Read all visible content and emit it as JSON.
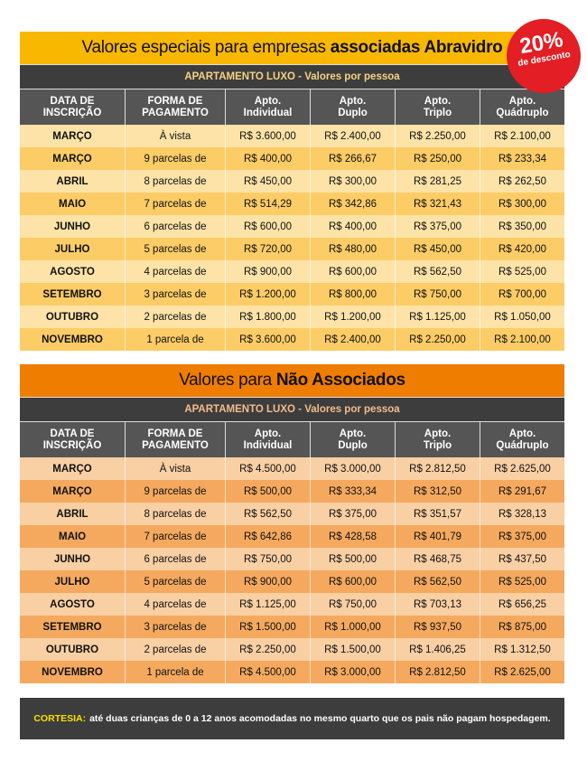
{
  "colors": {
    "yellow": "#F9B800",
    "orange": "#EF7D00",
    "row_light_1": "#FDE3A7",
    "row_dark_1": "#FCCC66",
    "row_light_2": "#F9CFA4",
    "row_dark_2": "#F5A95F",
    "header_gray": "#555555"
  },
  "badge": {
    "percent": "20%",
    "text": "de desconto"
  },
  "headers": [
    "DATA DE INSCRIÇÃO",
    "FORMA DE PAGAMENTO",
    "Apto. Individual",
    "Apto. Duplo",
    "Apto. Triplo",
    "Apto. Quádruplo"
  ],
  "sections": [
    {
      "title_normal": "Valores especiais para empresas",
      "title_bold": "associadas Abravidro",
      "subtitle": "APARTAMENTO LUXO - Valores por pessoa",
      "rows": [
        [
          "MARÇO",
          "À vista",
          "R$ 3.600,00",
          "R$ 2.400,00",
          "R$ 2.250,00",
          "R$ 2.100,00"
        ],
        [
          "MARÇO",
          "9 parcelas de",
          "R$ 400,00",
          "R$ 266,67",
          "R$ 250,00",
          "R$ 233,34"
        ],
        [
          "ABRIL",
          "8 parcelas de",
          "R$ 450,00",
          "R$ 300,00",
          "R$ 281,25",
          "R$ 262,50"
        ],
        [
          "MAIO",
          "7 parcelas de",
          "R$ 514,29",
          "R$ 342,86",
          "R$ 321,43",
          "R$ 300,00"
        ],
        [
          "JUNHO",
          "6 parcelas de",
          "R$ 600,00",
          "R$ 400,00",
          "R$ 375,00",
          "R$ 350,00"
        ],
        [
          "JULHO",
          "5 parcelas de",
          "R$ 720,00",
          "R$ 480,00",
          "R$ 450,00",
          "R$ 420,00"
        ],
        [
          "AGOSTO",
          "4 parcelas de",
          "R$ 900,00",
          "R$ 600,00",
          "R$ 562,50",
          "R$ 525,00"
        ],
        [
          "SETEMBRO",
          "3 parcelas de",
          "R$ 1.200,00",
          "R$ 800,00",
          "R$ 750,00",
          "R$ 700,00"
        ],
        [
          "OUTUBRO",
          "2 parcelas de",
          "R$ 1.800,00",
          "R$ 1.200,00",
          "R$ 1.125,00",
          "R$ 1.050,00"
        ],
        [
          "NOVEMBRO",
          "1 parcela de",
          "R$ 3.600,00",
          "R$ 2.400,00",
          "R$ 2.250,00",
          "R$ 2.100,00"
        ]
      ]
    },
    {
      "title_normal": "Valores para",
      "title_bold": "Não Associados",
      "subtitle": "APARTAMENTO LUXO - Valores por pessoa",
      "rows": [
        [
          "MARÇO",
          "À vista",
          "R$ 4.500,00",
          "R$ 3.000,00",
          "R$ 2.812,50",
          "R$ 2.625,00"
        ],
        [
          "MARÇO",
          "9 parcelas de",
          "R$ 500,00",
          "R$ 333,34",
          "R$ 312,50",
          "R$ 291,67"
        ],
        [
          "ABRIL",
          "8 parcelas de",
          "R$ 562,50",
          "R$ 375,00",
          "R$ 351,57",
          "R$ 328,13"
        ],
        [
          "MAIO",
          "7 parcelas de",
          "R$ 642,86",
          "R$ 428,58",
          "R$ 401,79",
          "R$ 375,00"
        ],
        [
          "JUNHO",
          "6 parcelas de",
          "R$ 750,00",
          "R$ 500,00",
          "R$ 468,75",
          "R$ 437,50"
        ],
        [
          "JULHO",
          "5 parcelas de",
          "R$ 900,00",
          "R$ 600,00",
          "R$ 562,50",
          "R$ 525,00"
        ],
        [
          "AGOSTO",
          "4 parcelas de",
          "R$ 1.125,00",
          "R$ 750,00",
          "R$ 703,13",
          "R$ 656,25"
        ],
        [
          "SETEMBRO",
          "3 parcelas de",
          "R$ 1.500,00",
          "R$ 1.000,00",
          "R$ 937,50",
          "R$ 875,00"
        ],
        [
          "OUTUBRO",
          "2 parcelas de",
          "R$ 2.250,00",
          "R$ 1.500,00",
          "R$ 1.406,25",
          "R$ 1.312,50"
        ],
        [
          "NOVEMBRO",
          "1 parcela de",
          "R$ 4.500,00",
          "R$ 3.000,00",
          "R$ 2.812,50",
          "R$ 2.625,00"
        ]
      ]
    }
  ],
  "footer": {
    "label": "CORTESIA:",
    "text": "até duas crianças de 0 a 12 anos acomodadas no mesmo quarto que os pais não pagam hospedagem."
  }
}
